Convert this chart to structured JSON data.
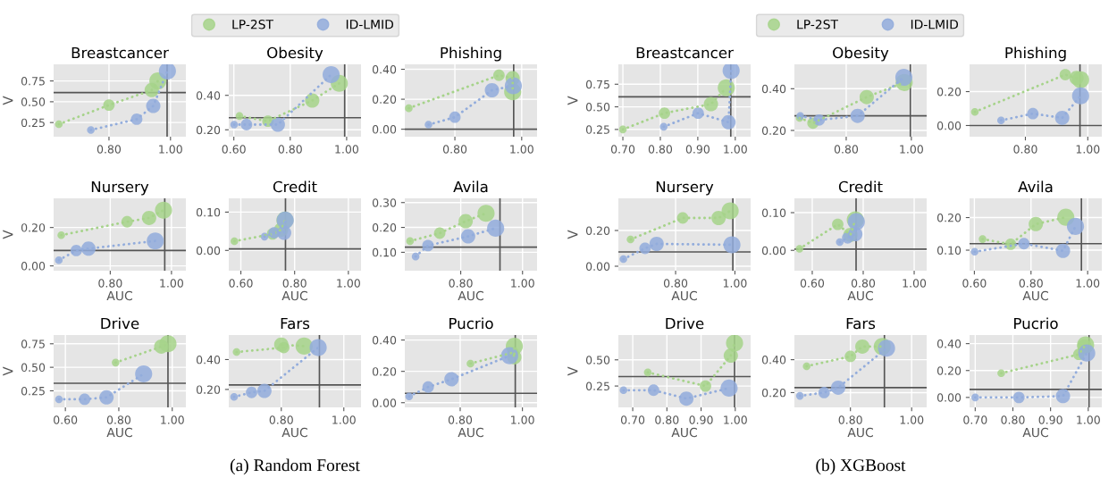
{
  "chart_data": [
    {
      "type": "bubble",
      "title": "Breastcancer",
      "ylabel": "V",
      "xlim": [
        0.62,
        1.05
      ],
      "ylim": [
        0.08,
        0.95
      ],
      "xticks": [
        {
          "value": 0.8,
          "label": "0.80"
        },
        {
          "value": 1.0,
          "label": "1.00"
        }
      ],
      "yticks": [
        {
          "value": 0.25,
          "label": "0.25"
        },
        {
          "value": 0.5,
          "label": "0.50"
        },
        {
          "value": 0.75,
          "label": "0.75"
        }
      ],
      "grid": true,
      "line_style": "dotted",
      "legend": "top",
      "series": [
        {
          "type": "line",
          "color": "#a6d38a",
          "x": [
            0.637,
            0.8,
            0.939,
            0.959
          ],
          "values": [
            0.23,
            0.46,
            0.64,
            0.75
          ]
        },
        {
          "type": "line",
          "color": "#92acdc",
          "x": [
            0.741,
            0.89,
            0.944,
            0.99
          ],
          "values": [
            0.16,
            0.29,
            0.45,
            0.87
          ]
        },
        {
          "name": "LP-2ST",
          "color": "#a6d38a",
          "x": [
            0.637,
            0.8,
            0.939,
            0.959
          ],
          "values": [
            0.23,
            0.46,
            0.64,
            0.75
          ],
          "sizes": [
            0.2,
            0.45,
            0.7,
            1
          ]
        },
        {
          "name": "ID-LMID",
          "color": "#92acdc",
          "x": [
            0.741,
            0.89,
            0.944,
            0.99
          ],
          "values": [
            0.16,
            0.29,
            0.45,
            0.87
          ],
          "sizes": [
            0.2,
            0.45,
            0.7,
            1
          ]
        }
      ],
      "ref_lines": [
        {
          "axis": "y",
          "value": 0.61
        },
        {
          "axis": "x",
          "value": 0.989
        }
      ]
    },
    {
      "type": "bubble",
      "title": "Obesity",
      "xlim": [
        0.582,
        1.051
      ],
      "ylim": [
        0.16,
        0.58
      ],
      "xticks": [
        {
          "value": 0.6,
          "label": "0.60"
        },
        {
          "value": 0.8,
          "label": "0.80"
        },
        {
          "value": 1.0,
          "label": "1.00"
        }
      ],
      "yticks": [
        {
          "value": 0.2,
          "label": "0.20"
        },
        {
          "value": 0.4,
          "label": "0.40"
        }
      ],
      "grid": true,
      "line_style": "dotted",
      "series": [
        {
          "type": "line",
          "color": "#a6d38a",
          "x": [
            0.62,
            0.721,
            0.878,
            0.974
          ],
          "values": [
            0.28,
            0.25,
            0.37,
            0.47
          ]
        },
        {
          "type": "line",
          "color": "#92acdc",
          "x": [
            0.601,
            0.645,
            0.756,
            0.945
          ],
          "values": [
            0.23,
            0.23,
            0.23,
            0.52
          ]
        },
        {
          "color": "#a6d38a",
          "x": [
            0.62,
            0.721,
            0.878,
            0.974
          ],
          "values": [
            0.28,
            0.25,
            0.37,
            0.47
          ],
          "sizes": [
            0.2,
            0.45,
            0.7,
            1
          ]
        },
        {
          "color": "#92acdc",
          "x": [
            0.601,
            0.645,
            0.756,
            0.945
          ],
          "values": [
            0.23,
            0.23,
            0.23,
            0.52
          ],
          "sizes": [
            0.2,
            0.45,
            0.7,
            1
          ]
        }
      ],
      "ref_lines": [
        {
          "axis": "y",
          "value": 0.27
        },
        {
          "axis": "x",
          "value": 0.993
        }
      ]
    },
    {
      "type": "bubble",
      "title": "Phishing",
      "xlim": [
        0.65,
        1.046
      ],
      "ylim": [
        -0.05,
        0.433
      ],
      "xticks": [
        {
          "value": 0.8,
          "label": "0.80"
        },
        {
          "value": 1.0,
          "label": "1.00"
        }
      ],
      "yticks": [
        {
          "value": 0.0,
          "label": "0.00"
        },
        {
          "value": 0.2,
          "label": "0.20"
        },
        {
          "value": 0.4,
          "label": "0.40"
        }
      ],
      "grid": true,
      "line_style": "dotted",
      "series": [
        {
          "type": "line",
          "color": "#a6d38a",
          "x": [
            0.662,
            0.932,
            0.973,
            0.973
          ],
          "values": [
            0.14,
            0.36,
            0.34,
            0.25
          ]
        },
        {
          "type": "line",
          "color": "#92acdc",
          "x": [
            0.721,
            0.8,
            0.911,
            0.975
          ],
          "values": [
            0.03,
            0.08,
            0.26,
            0.29
          ]
        },
        {
          "color": "#a6d38a",
          "x": [
            0.662,
            0.932,
            0.973,
            0.973
          ],
          "values": [
            0.14,
            0.36,
            0.34,
            0.25
          ],
          "sizes": [
            0.2,
            0.45,
            0.7,
            1
          ]
        },
        {
          "color": "#92acdc",
          "x": [
            0.721,
            0.8,
            0.911,
            0.975
          ],
          "values": [
            0.03,
            0.08,
            0.26,
            0.29
          ],
          "sizes": [
            0.2,
            0.45,
            0.7,
            1
          ]
        }
      ],
      "ref_lines": [
        {
          "axis": "y",
          "value": 0.0
        },
        {
          "axis": "x",
          "value": 0.976
        }
      ]
    },
    {
      "type": "bubble",
      "title": "Nursery",
      "ylabel": "V",
      "xlabel": "AUC",
      "xlim": [
        0.615,
        1.047
      ],
      "ylim": [
        -0.025,
        0.352
      ],
      "xticks": [
        {
          "value": 0.8,
          "label": "0.80"
        },
        {
          "value": 1.0,
          "label": "1.00"
        }
      ],
      "yticks": [
        {
          "value": 0.0,
          "label": "0.00"
        },
        {
          "value": 0.2,
          "label": "0.20"
        }
      ],
      "grid": true,
      "line_style": "dotted",
      "series": [
        {
          "type": "line",
          "color": "#a6d38a",
          "x": [
            0.64,
            0.855,
            0.927,
            0.974
          ],
          "values": [
            0.16,
            0.23,
            0.25,
            0.29
          ]
        },
        {
          "type": "line",
          "color": "#92acdc",
          "x": [
            0.632,
            0.689,
            0.729,
            0.947
          ],
          "values": [
            0.03,
            0.08,
            0.09,
            0.13
          ]
        },
        {
          "color": "#a6d38a",
          "x": [
            0.64,
            0.855,
            0.927,
            0.974
          ],
          "values": [
            0.16,
            0.23,
            0.25,
            0.29
          ],
          "sizes": [
            0.2,
            0.45,
            0.7,
            1
          ]
        },
        {
          "color": "#92acdc",
          "x": [
            0.632,
            0.689,
            0.729,
            0.947
          ],
          "values": [
            0.03,
            0.08,
            0.09,
            0.13
          ],
          "sizes": [
            0.2,
            0.45,
            0.7,
            1
          ]
        }
      ],
      "ref_lines": [
        {
          "axis": "y",
          "value": 0.08
        },
        {
          "axis": "x",
          "value": 0.978
        }
      ]
    },
    {
      "type": "bubble",
      "title": "Credit",
      "xlabel": "AUC",
      "xlim": [
        0.555,
        1.047
      ],
      "ylim": [
        -0.053,
        0.136
      ],
      "xticks": [
        {
          "value": 0.6,
          "label": "0.60"
        },
        {
          "value": 0.8,
          "label": "0.80"
        },
        {
          "value": 1.0,
          "label": "1.00"
        }
      ],
      "yticks": [
        {
          "value": 0.0,
          "label": "0.00"
        },
        {
          "value": 0.1,
          "label": "0.10"
        }
      ],
      "grid": true,
      "line_style": "dotted",
      "series": [
        {
          "type": "line",
          "color": "#a6d38a",
          "x": [
            0.576,
            0.718,
            0.75,
            0.764
          ],
          "values": [
            0.024,
            0.043,
            0.054,
            0.079
          ]
        },
        {
          "type": "line",
          "color": "#92acdc",
          "x": [
            0.688,
            0.724,
            0.761,
            0.765
          ],
          "values": [
            0.036,
            0.046,
            0.046,
            0.079
          ]
        },
        {
          "color": "#a6d38a",
          "x": [
            0.576,
            0.718,
            0.75,
            0.764
          ],
          "values": [
            0.024,
            0.043,
            0.054,
            0.079
          ],
          "sizes": [
            0.2,
            0.45,
            0.7,
            1
          ]
        },
        {
          "color": "#92acdc",
          "x": [
            0.688,
            0.724,
            0.761,
            0.765
          ],
          "values": [
            0.036,
            0.046,
            0.046,
            0.079
          ],
          "sizes": [
            0.2,
            0.45,
            0.7,
            1
          ]
        }
      ],
      "ref_lines": [
        {
          "axis": "y",
          "value": 0.004
        },
        {
          "axis": "x",
          "value": 0.766
        }
      ]
    },
    {
      "type": "bubble",
      "title": "Avila",
      "xlabel": "AUC",
      "xlim": [
        0.619,
        1.047
      ],
      "ylim": [
        0.026,
        0.317
      ],
      "xticks": [
        {
          "value": 0.8,
          "label": "0.80"
        },
        {
          "value": 1.0,
          "label": "1.00"
        }
      ],
      "yticks": [
        {
          "value": 0.1,
          "label": "0.10"
        },
        {
          "value": 0.2,
          "label": "0.20"
        },
        {
          "value": 0.3,
          "label": "0.30"
        }
      ],
      "grid": true,
      "line_style": "dotted",
      "series": [
        {
          "type": "line",
          "color": "#a6d38a",
          "x": [
            0.636,
            0.732,
            0.816,
            0.882
          ],
          "values": [
            0.145,
            0.177,
            0.225,
            0.257
          ]
        },
        {
          "type": "line",
          "color": "#92acdc",
          "x": [
            0.654,
            0.694,
            0.824,
            0.913
          ],
          "values": [
            0.083,
            0.127,
            0.164,
            0.197
          ]
        },
        {
          "color": "#a6d38a",
          "x": [
            0.636,
            0.732,
            0.816,
            0.882
          ],
          "values": [
            0.145,
            0.177,
            0.225,
            0.257
          ],
          "sizes": [
            0.2,
            0.45,
            0.7,
            1
          ]
        },
        {
          "color": "#92acdc",
          "x": [
            0.654,
            0.694,
            0.824,
            0.913
          ],
          "values": [
            0.083,
            0.127,
            0.164,
            0.197
          ],
          "sizes": [
            0.2,
            0.45,
            0.7,
            1
          ]
        }
      ],
      "ref_lines": [
        {
          "axis": "y",
          "value": 0.121
        },
        {
          "axis": "x",
          "value": 0.927
        }
      ]
    },
    {
      "type": "bubble",
      "title": "Drive",
      "ylabel": "V",
      "xlabel": "AUC",
      "xlim": [
        0.556,
        1.051
      ],
      "ylim": [
        0.074,
        0.843
      ],
      "xticks": [
        {
          "value": 0.6,
          "label": "0.60"
        },
        {
          "value": 0.8,
          "label": "0.80"
        },
        {
          "value": 1.0,
          "label": "1.00"
        }
      ],
      "yticks": [
        {
          "value": 0.25,
          "label": "0.25"
        },
        {
          "value": 0.5,
          "label": "0.50"
        },
        {
          "value": 0.75,
          "label": "0.75"
        }
      ],
      "grid": true,
      "line_style": "dotted",
      "series": [
        {
          "type": "line",
          "color": "#a6d38a",
          "x": [
            0.788,
            0.959,
            0.984
          ],
          "values": [
            0.55,
            0.72,
            0.75
          ]
        },
        {
          "type": "line",
          "color": "#92acdc",
          "x": [
            0.576,
            0.672,
            0.754,
            0.893
          ],
          "values": [
            0.16,
            0.16,
            0.18,
            0.43
          ]
        },
        {
          "color": "#a6d38a",
          "x": [
            0.788,
            0.959,
            0.984
          ],
          "values": [
            0.55,
            0.72,
            0.75
          ],
          "sizes": [
            0.2,
            0.7,
            1
          ]
        },
        {
          "color": "#92acdc",
          "x": [
            0.576,
            0.672,
            0.754,
            0.893
          ],
          "values": [
            0.16,
            0.16,
            0.18,
            0.43
          ],
          "sizes": [
            0.2,
            0.45,
            0.7,
            1
          ]
        }
      ],
      "ref_lines": [
        {
          "axis": "y",
          "value": 0.33
        },
        {
          "axis": "x",
          "value": 0.984
        }
      ]
    },
    {
      "type": "bubble",
      "title": "Fars",
      "xlabel": "AUC",
      "xlim": [
        0.632,
        1.055
      ],
      "ylim": [
        0.08,
        0.564
      ],
      "xticks": [
        {
          "value": 0.8,
          "label": "0.80"
        },
        {
          "value": 1.0,
          "label": "1.00"
        }
      ],
      "yticks": [
        {
          "value": 0.2,
          "label": "0.20"
        },
        {
          "value": 0.4,
          "label": "0.40"
        }
      ],
      "grid": true,
      "line_style": "dotted",
      "annotations": [
        "(a) Random Forest"
      ],
      "series": [
        {
          "type": "line",
          "color": "#a6d38a",
          "x": [
            0.657,
            0.808,
            0.8,
            0.873
          ],
          "values": [
            0.45,
            0.48,
            0.5,
            0.49
          ]
        },
        {
          "type": "line",
          "color": "#92acdc",
          "x": [
            0.649,
            0.705,
            0.746,
            0.918
          ],
          "values": [
            0.15,
            0.18,
            0.19,
            0.48
          ]
        },
        {
          "color": "#a6d38a",
          "x": [
            0.657,
            0.808,
            0.8,
            0.873
          ],
          "values": [
            0.45,
            0.48,
            0.5,
            0.49
          ],
          "sizes": [
            0.2,
            0.45,
            0.7,
            1
          ]
        },
        {
          "color": "#92acdc",
          "x": [
            0.649,
            0.705,
            0.746,
            0.918
          ],
          "values": [
            0.15,
            0.18,
            0.19,
            0.48
          ],
          "sizes": [
            0.2,
            0.45,
            0.7,
            1
          ]
        }
      ],
      "ref_lines": [
        {
          "axis": "y",
          "value": 0.23
        },
        {
          "axis": "x",
          "value": 0.922
        }
      ]
    },
    {
      "type": "bubble",
      "title": "Pucrio",
      "xlabel": "AUC",
      "xlim": [
        0.622,
        1.047
      ],
      "ylim": [
        -0.03,
        0.432
      ],
      "xticks": [
        {
          "value": 0.8,
          "label": "0.80"
        },
        {
          "value": 1.0,
          "label": "1.00"
        }
      ],
      "yticks": [
        {
          "value": 0.0,
          "label": "0.00"
        },
        {
          "value": 0.2,
          "label": "0.20"
        },
        {
          "value": 0.4,
          "label": "0.40"
        }
      ],
      "grid": true,
      "line_style": "dotted",
      "series": [
        {
          "type": "line",
          "color": "#a6d38a",
          "x": [
            0.833,
            0.97,
            0.974,
            0.974
          ],
          "values": [
            0.25,
            0.32,
            0.29,
            0.36
          ]
        },
        {
          "type": "line",
          "color": "#92acdc",
          "x": [
            0.636,
            0.697,
            0.772,
            0.959
          ],
          "values": [
            0.04,
            0.1,
            0.15,
            0.3
          ]
        },
        {
          "color": "#a6d38a",
          "x": [
            0.833,
            0.97,
            0.974,
            0.974
          ],
          "values": [
            0.25,
            0.32,
            0.29,
            0.36
          ],
          "sizes": [
            0.2,
            0.45,
            0.7,
            1
          ]
        },
        {
          "color": "#92acdc",
          "x": [
            0.636,
            0.697,
            0.772,
            0.959
          ],
          "values": [
            0.04,
            0.1,
            0.15,
            0.3
          ],
          "sizes": [
            0.2,
            0.45,
            0.7,
            1
          ]
        }
      ],
      "ref_lines": [
        {
          "axis": "y",
          "value": 0.06
        },
        {
          "axis": "x",
          "value": 0.977
        }
      ]
    },
    {
      "type": "bubble",
      "title": "Breastcancer",
      "ylabel": "V",
      "xlim": [
        0.688,
        1.041
      ],
      "ylim": [
        0.17,
        0.97
      ],
      "xticks": [
        {
          "value": 0.7,
          "label": "0.70"
        },
        {
          "value": 0.8,
          "label": "0.80"
        },
        {
          "value": 0.9,
          "label": "0.90"
        },
        {
          "value": 1.0,
          "label": "1.00"
        }
      ],
      "yticks": [
        {
          "value": 0.25,
          "label": "0.25"
        },
        {
          "value": 0.5,
          "label": "0.50"
        },
        {
          "value": 0.75,
          "label": "0.75"
        }
      ],
      "grid": true,
      "line_style": "dotted",
      "legend": "top",
      "series": [
        {
          "type": "line",
          "color": "#a6d38a",
          "x": [
            0.7,
            0.811,
            0.935,
            0.976
          ],
          "values": [
            0.25,
            0.43,
            0.53,
            0.71
          ]
        },
        {
          "type": "line",
          "color": "#92acdc",
          "x": [
            0.809,
            0.901,
            0.982,
            0.989
          ],
          "values": [
            0.28,
            0.43,
            0.33,
            0.9
          ]
        },
        {
          "name": "LP-2ST",
          "color": "#a6d38a",
          "x": [
            0.7,
            0.811,
            0.935,
            0.976
          ],
          "values": [
            0.25,
            0.43,
            0.53,
            0.71
          ],
          "sizes": [
            0.2,
            0.45,
            0.7,
            1
          ]
        },
        {
          "name": "ID-LMID",
          "color": "#92acdc",
          "x": [
            0.809,
            0.901,
            0.982,
            0.989
          ],
          "values": [
            0.28,
            0.43,
            0.33,
            0.9
          ],
          "sizes": [
            0.2,
            0.45,
            0.7,
            1
          ]
        }
      ],
      "ref_lines": [
        {
          "axis": "y",
          "value": 0.61
        },
        {
          "axis": "x",
          "value": 0.988
        }
      ]
    },
    {
      "type": "bubble",
      "title": "Obesity",
      "xlim": [
        0.641,
        1.047
      ],
      "ylim": [
        0.17,
        0.517
      ],
      "xticks": [
        {
          "value": 0.8,
          "label": "0.80"
        },
        {
          "value": 1.0,
          "label": "1.00"
        }
      ],
      "yticks": [
        {
          "value": 0.2,
          "label": "0.20"
        },
        {
          "value": 0.4,
          "label": "0.40"
        }
      ],
      "grid": true,
      "line_style": "dotted",
      "series": [
        {
          "type": "line",
          "color": "#a6d38a",
          "x": [
            0.657,
            0.698,
            0.863,
            0.978
          ],
          "values": [
            0.26,
            0.235,
            0.36,
            0.43
          ]
        },
        {
          "type": "line",
          "color": "#92acdc",
          "x": [
            0.659,
            0.717,
            0.835,
            0.977
          ],
          "values": [
            0.27,
            0.25,
            0.27,
            0.455
          ]
        },
        {
          "color": "#a6d38a",
          "x": [
            0.657,
            0.698,
            0.863,
            0.978
          ],
          "values": [
            0.26,
            0.235,
            0.36,
            0.43
          ],
          "sizes": [
            0.2,
            0.45,
            0.7,
            1
          ]
        },
        {
          "color": "#92acdc",
          "x": [
            0.659,
            0.717,
            0.835,
            0.977
          ],
          "values": [
            0.27,
            0.25,
            0.27,
            0.455
          ],
          "sizes": [
            0.2,
            0.45,
            0.7,
            1
          ]
        }
      ],
      "ref_lines": [
        {
          "axis": "y",
          "value": 0.27
        },
        {
          "axis": "x",
          "value": 0.997
        }
      ]
    },
    {
      "type": "bubble",
      "title": "Phishing",
      "xlim": [
        0.621,
        1.045
      ],
      "ylim": [
        -0.066,
        0.361
      ],
      "xticks": [
        {
          "value": 0.8,
          "label": "0.80"
        },
        {
          "value": 1.0,
          "label": "1.00"
        }
      ],
      "yticks": [
        {
          "value": 0.0,
          "label": "0.00"
        },
        {
          "value": 0.2,
          "label": "0.20"
        }
      ],
      "grid": true,
      "line_style": "dotted",
      "series": [
        {
          "type": "line",
          "color": "#a6d38a",
          "x": [
            0.638,
            0.928,
            0.964,
            0.977
          ],
          "values": [
            0.08,
            0.3,
            0.28,
            0.27
          ]
        },
        {
          "type": "line",
          "color": "#92acdc",
          "x": [
            0.722,
            0.824,
            0.918,
            0.977
          ],
          "values": [
            0.03,
            0.07,
            0.045,
            0.175
          ]
        },
        {
          "color": "#a6d38a",
          "x": [
            0.638,
            0.928,
            0.964,
            0.977
          ],
          "values": [
            0.08,
            0.3,
            0.28,
            0.27
          ],
          "sizes": [
            0.2,
            0.45,
            0.7,
            1
          ]
        },
        {
          "color": "#92acdc",
          "x": [
            0.722,
            0.824,
            0.918,
            0.977
          ],
          "values": [
            0.03,
            0.07,
            0.045,
            0.175
          ],
          "sizes": [
            0.2,
            0.45,
            0.7,
            1
          ]
        }
      ],
      "ref_lines": [
        {
          "axis": "y",
          "value": 0.0
        },
        {
          "axis": "x",
          "value": 0.975
        }
      ]
    },
    {
      "type": "bubble",
      "title": "Nursery",
      "ylabel": "V",
      "xlabel": "AUC",
      "xlim": [
        0.607,
        1.053
      ],
      "ylim": [
        -0.025,
        0.38
      ],
      "xticks": [
        {
          "value": 0.8,
          "label": "0.80"
        },
        {
          "value": 1.0,
          "label": "1.00"
        }
      ],
      "yticks": [
        {
          "value": 0.0,
          "label": "0.00"
        },
        {
          "value": 0.2,
          "label": "0.20"
        }
      ],
      "grid": true,
      "line_style": "dotted",
      "series": [
        {
          "type": "line",
          "color": "#a6d38a",
          "x": [
            0.648,
            0.824,
            0.945,
            0.984
          ],
          "values": [
            0.15,
            0.27,
            0.27,
            0.31
          ]
        },
        {
          "type": "line",
          "color": "#92acdc",
          "x": [
            0.624,
            0.697,
            0.736,
            0.99
          ],
          "values": [
            0.04,
            0.1,
            0.125,
            0.12
          ]
        },
        {
          "color": "#a6d38a",
          "x": [
            0.648,
            0.824,
            0.945,
            0.984
          ],
          "values": [
            0.15,
            0.27,
            0.27,
            0.31
          ],
          "sizes": [
            0.2,
            0.45,
            0.7,
            1
          ]
        },
        {
          "color": "#92acdc",
          "x": [
            0.624,
            0.697,
            0.736,
            0.99
          ],
          "values": [
            0.04,
            0.1,
            0.125,
            0.12
          ],
          "sizes": [
            0.2,
            0.45,
            0.7,
            1
          ]
        }
      ],
      "ref_lines": [
        {
          "axis": "y",
          "value": 0.08
        },
        {
          "axis": "x",
          "value": 0.993
        }
      ]
    },
    {
      "type": "bubble",
      "title": "Credit",
      "xlabel": "AUC",
      "xlim": [
        0.53,
        1.049
      ],
      "ylim": [
        -0.054,
        0.138
      ],
      "xticks": [
        {
          "value": 0.6,
          "label": "0.60"
        },
        {
          "value": 0.8,
          "label": "0.80"
        },
        {
          "value": 1.0,
          "label": "1.00"
        }
      ],
      "yticks": [
        {
          "value": 0.0,
          "label": "0.00"
        },
        {
          "value": 0.1,
          "label": "0.10"
        }
      ],
      "grid": true,
      "line_style": "dotted",
      "series": [
        {
          "type": "line",
          "color": "#a6d38a",
          "x": [
            0.55,
            0.7,
            0.75,
            0.769
          ],
          "values": [
            0.004,
            0.069,
            0.041,
            0.081
          ]
        },
        {
          "type": "line",
          "color": "#92acdc",
          "x": [
            0.708,
            0.739,
            0.769,
            0.773
          ],
          "values": [
            0.022,
            0.033,
            0.043,
            0.076
          ]
        },
        {
          "color": "#a6d38a",
          "x": [
            0.55,
            0.7,
            0.75,
            0.769
          ],
          "values": [
            0.004,
            0.069,
            0.041,
            0.081
          ],
          "sizes": [
            0.2,
            0.45,
            0.7,
            1
          ]
        },
        {
          "color": "#92acdc",
          "x": [
            0.708,
            0.739,
            0.769,
            0.773
          ],
          "values": [
            0.022,
            0.033,
            0.043,
            0.076
          ],
          "sizes": [
            0.2,
            0.45,
            0.7,
            1
          ]
        }
      ],
      "ref_lines": [
        {
          "axis": "y",
          "value": 0.003
        },
        {
          "axis": "x",
          "value": 0.772
        }
      ]
    },
    {
      "type": "bubble",
      "title": "Avila",
      "xlabel": "AUC",
      "xlim": [
        0.583,
        1.05
      ],
      "ylim": [
        0.037,
        0.259
      ],
      "xticks": [
        {
          "value": 0.6,
          "label": "0.60"
        },
        {
          "value": 0.8,
          "label": "0.80"
        },
        {
          "value": 1.0,
          "label": "1.00"
        }
      ],
      "yticks": [
        {
          "value": 0.1,
          "label": "0.10"
        },
        {
          "value": 0.2,
          "label": "0.20"
        }
      ],
      "grid": true,
      "line_style": "dotted",
      "series": [
        {
          "type": "line",
          "color": "#a6d38a",
          "x": [
            0.629,
            0.728,
            0.817,
            0.923
          ],
          "values": [
            0.134,
            0.118,
            0.18,
            0.201
          ]
        },
        {
          "type": "line",
          "color": "#92acdc",
          "x": [
            0.601,
            0.775,
            0.913,
            0.957
          ],
          "values": [
            0.095,
            0.12,
            0.098,
            0.173
          ]
        },
        {
          "color": "#a6d38a",
          "x": [
            0.629,
            0.728,
            0.817,
            0.923
          ],
          "values": [
            0.134,
            0.118,
            0.18,
            0.201
          ],
          "sizes": [
            0.2,
            0.45,
            0.7,
            1
          ]
        },
        {
          "color": "#92acdc",
          "x": [
            0.601,
            0.775,
            0.913,
            0.957
          ],
          "values": [
            0.095,
            0.12,
            0.098,
            0.173
          ],
          "sizes": [
            0.2,
            0.45,
            0.7,
            1
          ]
        }
      ],
      "ref_lines": [
        {
          "axis": "y",
          "value": 0.12
        },
        {
          "axis": "x",
          "value": 0.978
        }
      ]
    },
    {
      "type": "bubble",
      "title": "Drive",
      "ylabel": "V",
      "xlabel": "AUC",
      "xlim": [
        0.658,
        1.045
      ],
      "ylim": [
        0.046,
        0.737
      ],
      "xticks": [
        {
          "value": 0.7,
          "label": "0.70"
        },
        {
          "value": 0.8,
          "label": "0.80"
        },
        {
          "value": 0.9,
          "label": "0.90"
        },
        {
          "value": 1.0,
          "label": "1.00"
        }
      ],
      "yticks": [
        {
          "value": 0.25,
          "label": "0.25"
        },
        {
          "value": 0.5,
          "label": "0.50"
        }
      ],
      "grid": true,
      "line_style": "dotted",
      "series": [
        {
          "type": "line",
          "color": "#a6d38a",
          "x": [
            0.744,
            0.913,
            0.987,
            0.998
          ],
          "values": [
            0.38,
            0.25,
            0.54,
            0.66
          ]
        },
        {
          "type": "line",
          "color": "#92acdc",
          "x": [
            0.673,
            0.761,
            0.857,
            0.982
          ],
          "values": [
            0.21,
            0.21,
            0.13,
            0.23
          ]
        },
        {
          "color": "#a6d38a",
          "x": [
            0.744,
            0.913,
            0.987,
            0.998
          ],
          "values": [
            0.38,
            0.25,
            0.54,
            0.66
          ],
          "sizes": [
            0.2,
            0.45,
            0.7,
            1
          ]
        },
        {
          "color": "#92acdc",
          "x": [
            0.673,
            0.761,
            0.857,
            0.982
          ],
          "values": [
            0.21,
            0.21,
            0.13,
            0.23
          ],
          "sizes": [
            0.2,
            0.45,
            0.7,
            1
          ]
        }
      ],
      "ref_lines": [
        {
          "axis": "y",
          "value": 0.34
        },
        {
          "axis": "x",
          "value": 0.998
        }
      ]
    },
    {
      "type": "bubble",
      "title": "Fars",
      "xlabel": "AUC",
      "xlim": [
        0.617,
        1.049
      ],
      "ylim": [
        0.11,
        0.55
      ],
      "xticks": [
        {
          "value": 0.8,
          "label": "0.80"
        },
        {
          "value": 1.0,
          "label": "1.00"
        }
      ],
      "yticks": [
        {
          "value": 0.2,
          "label": "0.20"
        },
        {
          "value": 0.4,
          "label": "0.40"
        }
      ],
      "grid": true,
      "line_style": "dotted",
      "annotations": [
        "(b) XGBoost"
      ],
      "series": [
        {
          "type": "line",
          "color": "#a6d38a",
          "x": [
            0.657,
            0.8,
            0.839,
            0.904
          ],
          "values": [
            0.36,
            0.42,
            0.48,
            0.48
          ]
        },
        {
          "type": "line",
          "color": "#92acdc",
          "x": [
            0.635,
            0.714,
            0.76,
            0.918
          ],
          "values": [
            0.18,
            0.2,
            0.23,
            0.47
          ]
        },
        {
          "color": "#a6d38a",
          "x": [
            0.657,
            0.8,
            0.839,
            0.904
          ],
          "values": [
            0.36,
            0.42,
            0.48,
            0.48
          ],
          "sizes": [
            0.2,
            0.45,
            0.7,
            1
          ]
        },
        {
          "color": "#92acdc",
          "x": [
            0.635,
            0.714,
            0.76,
            0.918
          ],
          "values": [
            0.18,
            0.2,
            0.23,
            0.47
          ],
          "sizes": [
            0.2,
            0.45,
            0.7,
            1
          ]
        }
      ],
      "ref_lines": [
        {
          "axis": "y",
          "value": 0.23
        },
        {
          "axis": "x",
          "value": 0.911
        }
      ]
    },
    {
      "type": "bubble",
      "title": "Pucrio",
      "xlabel": "AUC",
      "xlim": [
        0.685,
        1.036
      ],
      "ylim": [
        -0.074,
        0.464
      ],
      "xticks": [
        {
          "value": 0.7,
          "label": "0.70"
        },
        {
          "value": 0.8,
          "label": "0.80"
        },
        {
          "value": 0.9,
          "label": "0.90"
        },
        {
          "value": 1.0,
          "label": "1.00"
        }
      ],
      "yticks": [
        {
          "value": 0.0,
          "label": "0.00"
        },
        {
          "value": 0.2,
          "label": "0.20"
        },
        {
          "value": 0.4,
          "label": "0.40"
        }
      ],
      "grid": true,
      "line_style": "dotted",
      "series": [
        {
          "type": "line",
          "color": "#a6d38a",
          "x": [
            0.769,
            0.975,
            0.99,
            0.993
          ],
          "values": [
            0.18,
            0.32,
            0.38,
            0.39
          ]
        },
        {
          "type": "line",
          "color": "#92acdc",
          "x": [
            0.7,
            0.816,
            0.933,
            0.996
          ],
          "values": [
            0.0,
            0.0,
            0.01,
            0.33
          ]
        },
        {
          "color": "#a6d38a",
          "x": [
            0.769,
            0.975,
            0.99,
            0.993
          ],
          "values": [
            0.18,
            0.32,
            0.38,
            0.39
          ],
          "sizes": [
            0.2,
            0.45,
            0.7,
            1
          ]
        },
        {
          "color": "#92acdc",
          "x": [
            0.7,
            0.816,
            0.933,
            0.996
          ],
          "values": [
            0.0,
            0.0,
            0.01,
            0.33
          ],
          "sizes": [
            0.2,
            0.45,
            0.7,
            1
          ]
        }
      ],
      "ref_lines": [
        {
          "axis": "y",
          "value": 0.06
        },
        {
          "axis": "x",
          "value": 1.002
        }
      ]
    }
  ]
}
